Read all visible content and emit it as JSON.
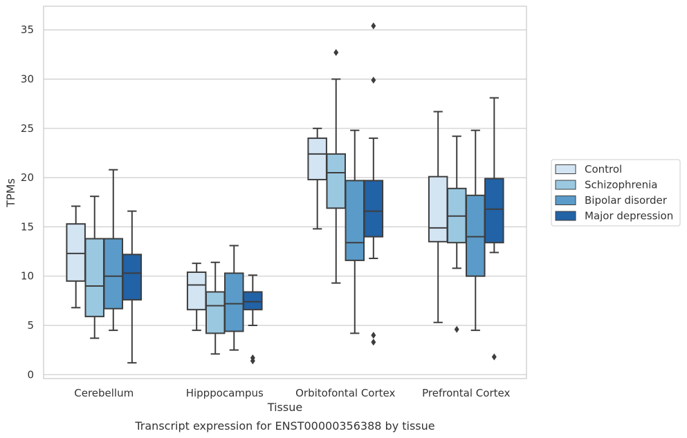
{
  "chart_data": {
    "type": "boxplot",
    "xlabel": "Tissue",
    "ylabel": "TPMs",
    "caption": "Transcript expression for ENST00000356388 by tissue",
    "ylim": [
      -0.4,
      37.4
    ],
    "yticks": [
      0,
      5,
      10,
      15,
      20,
      25,
      30,
      35
    ],
    "grid": true,
    "legend_position": "right",
    "categories": [
      "Cerebellum",
      "Hipppocampus",
      "Orbitofontal Cortex",
      "Prefrontal Cortex"
    ],
    "series": [
      {
        "name": "Control",
        "color": "#d3e4f3",
        "boxes": [
          {
            "whislo": 6.8,
            "q1": 9.5,
            "med": 12.3,
            "q3": 15.3,
            "whishi": 17.1,
            "fliers": []
          },
          {
            "whislo": 4.5,
            "q1": 6.6,
            "med": 9.1,
            "q3": 10.4,
            "whishi": 11.3,
            "fliers": []
          },
          {
            "whislo": 14.8,
            "q1": 19.8,
            "med": 22.4,
            "q3": 24.0,
            "whishi": 25.0,
            "fliers": []
          },
          {
            "whislo": 5.3,
            "q1": 13.5,
            "med": 14.9,
            "q3": 20.1,
            "whishi": 26.7,
            "fliers": []
          }
        ]
      },
      {
        "name": "Schizophrenia",
        "color": "#9ac8e0",
        "boxes": [
          {
            "whislo": 3.7,
            "q1": 5.9,
            "med": 9.0,
            "q3": 13.8,
            "whishi": 18.1,
            "fliers": []
          },
          {
            "whislo": 2.1,
            "q1": 4.2,
            "med": 7.0,
            "q3": 8.4,
            "whishi": 11.4,
            "fliers": []
          },
          {
            "whislo": 9.3,
            "q1": 16.9,
            "med": 20.5,
            "q3": 22.4,
            "whishi": 30.0,
            "fliers": [
              32.7
            ]
          },
          {
            "whislo": 10.8,
            "q1": 13.4,
            "med": 16.1,
            "q3": 18.9,
            "whishi": 24.2,
            "fliers": [
              4.6
            ]
          }
        ]
      },
      {
        "name": "Bipolar disorder",
        "color": "#5a9bc9",
        "boxes": [
          {
            "whislo": 4.5,
            "q1": 6.7,
            "med": 10.0,
            "q3": 13.8,
            "whishi": 20.8,
            "fliers": []
          },
          {
            "whislo": 2.5,
            "q1": 4.4,
            "med": 7.2,
            "q3": 10.3,
            "whishi": 13.1,
            "fliers": []
          },
          {
            "whislo": 4.2,
            "q1": 11.6,
            "med": 13.4,
            "q3": 19.7,
            "whishi": 24.8,
            "fliers": []
          },
          {
            "whislo": 4.5,
            "q1": 10.0,
            "med": 14.0,
            "q3": 18.2,
            "whishi": 24.8,
            "fliers": []
          }
        ]
      },
      {
        "name": "Major depression",
        "color": "#2262a6",
        "boxes": [
          {
            "whislo": 1.2,
            "q1": 7.6,
            "med": 10.3,
            "q3": 12.2,
            "whishi": 16.6,
            "fliers": []
          },
          {
            "whislo": 5.0,
            "q1": 6.6,
            "med": 7.4,
            "q3": 8.4,
            "whishi": 10.1,
            "fliers": [
              1.4,
              1.7
            ]
          },
          {
            "whislo": 11.8,
            "q1": 14.0,
            "med": 16.6,
            "q3": 19.7,
            "whishi": 24.0,
            "fliers": [
              3.3,
              4.0,
              29.9,
              35.4
            ]
          },
          {
            "whislo": 12.4,
            "q1": 13.4,
            "med": 16.8,
            "q3": 19.9,
            "whishi": 28.1,
            "fliers": [
              1.8
            ]
          }
        ]
      }
    ]
  }
}
